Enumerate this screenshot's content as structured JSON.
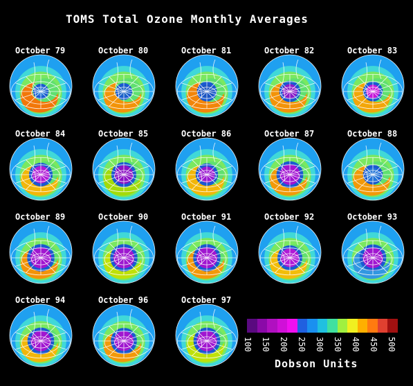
{
  "title": "TOMS Total Ozone Monthly Averages",
  "panels": [
    {
      "label": "October 79",
      "hole": 0.15,
      "holeColor": "#2d7bd8",
      "ringColor": "#ff6a00"
    },
    {
      "label": "October 80",
      "hole": 0.17,
      "holeColor": "#1f66c8",
      "ringColor": "#ff8a00"
    },
    {
      "label": "October 81",
      "hole": 0.22,
      "holeColor": "#1b55c2",
      "ringColor": "#ff7a00"
    },
    {
      "label": "October 82",
      "hole": 0.24,
      "holeColor": "#8a1cc9",
      "ringColor": "#ff8a00"
    },
    {
      "label": "October 83",
      "hole": 0.22,
      "holeColor": "#c617d9",
      "ringColor": "#ff9f00"
    },
    {
      "label": "October 84",
      "hole": 0.28,
      "holeColor": "#b01ad6",
      "ringColor": "#ffb000"
    },
    {
      "label": "October 85",
      "hole": 0.3,
      "holeColor": "#8d12c5",
      "ringColor": "#a8d800"
    },
    {
      "label": "October 86",
      "hole": 0.26,
      "holeColor": "#9a18d0",
      "ringColor": "#ffb000"
    },
    {
      "label": "October 87",
      "hole": 0.33,
      "holeColor": "#a214d2",
      "ringColor": "#ff9000"
    },
    {
      "label": "October 88",
      "hole": 0.22,
      "holeColor": "#2274d8",
      "ringColor": "#ff9000"
    },
    {
      "label": "October 89",
      "hole": 0.34,
      "holeColor": "#a015d0",
      "ringColor": "#ff8a00"
    },
    {
      "label": "October 90",
      "hole": 0.34,
      "holeColor": "#9d17d0",
      "ringColor": "#c7e000"
    },
    {
      "label": "October 91",
      "hole": 0.34,
      "holeColor": "#a015d0",
      "ringColor": "#ff9000"
    },
    {
      "label": "October 92",
      "hole": 0.3,
      "holeColor": "#b01ad6",
      "ringColor": "#ffb800"
    },
    {
      "label": "October 93",
      "hole": 0.33,
      "holeColor": "#a015d0",
      "ringColor": "#2a8ef0"
    },
    {
      "label": "October 94",
      "hole": 0.33,
      "holeColor": "#a015d0",
      "ringColor": "#ffb000"
    },
    {
      "label": "October 96",
      "hole": 0.32,
      "holeColor": "#a015d0",
      "ringColor": "#ff9000"
    },
    {
      "label": "October 97",
      "hole": 0.33,
      "holeColor": "#a015d0",
      "ringColor": "#c7e000"
    }
  ],
  "legend": {
    "colors": [
      "#5a0a80",
      "#8a0aa8",
      "#b010c0",
      "#d010d8",
      "#f010f0",
      "#2060e0",
      "#1a90f0",
      "#20c0e0",
      "#40e0a0",
      "#a0f040",
      "#f0f020",
      "#ffb000",
      "#ff7a10",
      "#e04030",
      "#a01010"
    ],
    "ticks": [
      "100",
      "150",
      "200",
      "250",
      "300",
      "350",
      "400",
      "450",
      "500"
    ],
    "units": "Dobson Units"
  }
}
